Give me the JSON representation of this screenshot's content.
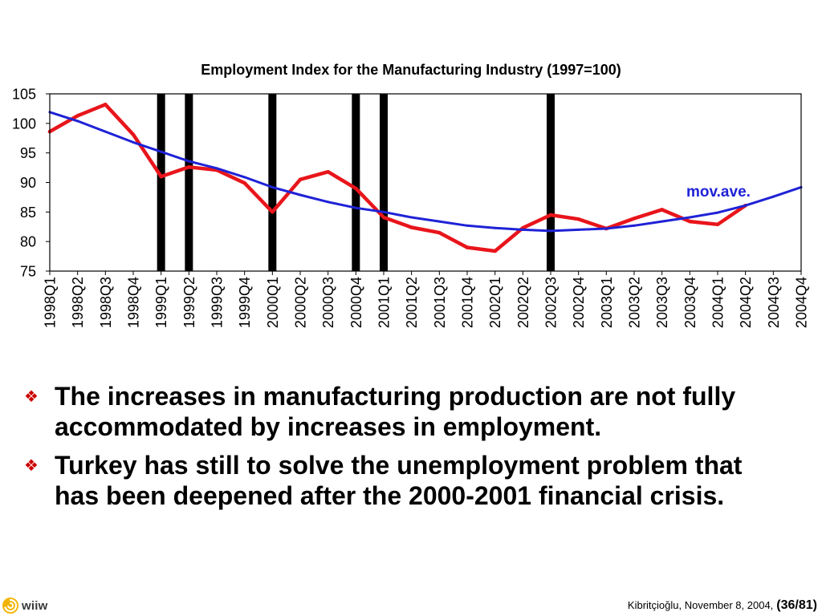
{
  "slide": {
    "bullet_color": "#cc0000",
    "bullets": [
      {
        "icon": "four-diamond-bullet-icon",
        "text": "The increases in manufacturing production are not fully accommodated by increases in employment."
      },
      {
        "icon": "four-diamond-bullet-icon",
        "text": "Turkey has still to solve the unemployment problem that has been deepened after the 2000-2001 financial crisis."
      }
    ]
  },
  "footer": {
    "logo_icon": "wiiw-logo-icon",
    "logo_color": "#f2b400",
    "logo_text": "wiiw",
    "citation": "Kibritçioğlu, November 8, 2004,",
    "page": "(36/81)"
  },
  "chart_data": {
    "type": "line",
    "title": "Employment Index for the Manufacturing Industry (1997=100)",
    "categories": [
      "1998Q1",
      "1998Q2",
      "1998Q3",
      "1998Q4",
      "1999Q1",
      "1999Q2",
      "1999Q3",
      "1999Q4",
      "2000Q1",
      "2000Q2",
      "2000Q3",
      "2000Q4",
      "2001Q1",
      "2001Q2",
      "2001Q3",
      "2001Q4",
      "2002Q1",
      "2002Q2",
      "2002Q3",
      "2002Q4",
      "2003Q1",
      "2003Q2",
      "2003Q3",
      "2003Q4",
      "2004Q1",
      "2004Q2",
      "2004Q3",
      "2004Q4"
    ],
    "series": [
      {
        "color": "#e8151b",
        "values": [
          98.6,
          101.3,
          103.2,
          98.1,
          91.0,
          92.6,
          92.1,
          89.9,
          85.0,
          90.5,
          91.8,
          89.0,
          84.1,
          82.4,
          81.5,
          79.0,
          78.4,
          82.3,
          84.5,
          83.8,
          82.2,
          83.9,
          85.4,
          83.4,
          82.9,
          86.1,
          null,
          null
        ]
      },
      {
        "name": "mov.ave.",
        "color": "#1f22d6",
        "values": [
          101.9,
          100.4,
          98.6,
          96.8,
          95.2,
          93.6,
          92.4,
          90.9,
          89.2,
          87.9,
          86.7,
          85.7,
          85.0,
          84.1,
          83.4,
          82.7,
          82.3,
          82.0,
          81.8,
          82.0,
          82.2,
          82.7,
          83.4,
          84.1,
          84.9,
          86.1,
          87.6,
          89.2
        ]
      }
    ],
    "ylim": [
      75,
      105
    ],
    "yticks": [
      75,
      80,
      85,
      90,
      95,
      100,
      105
    ],
    "grid": false,
    "legend": "none",
    "vertical_markers": {
      "color": "#000000",
      "categories": [
        "1999Q1",
        "1999Q2",
        "2000Q1",
        "2000Q4",
        "2001Q1",
        "2002Q3"
      ]
    },
    "annotations": [
      {
        "text": "mov.ave.",
        "series": "mov.ave.",
        "color": "#1f22d6"
      }
    ]
  }
}
